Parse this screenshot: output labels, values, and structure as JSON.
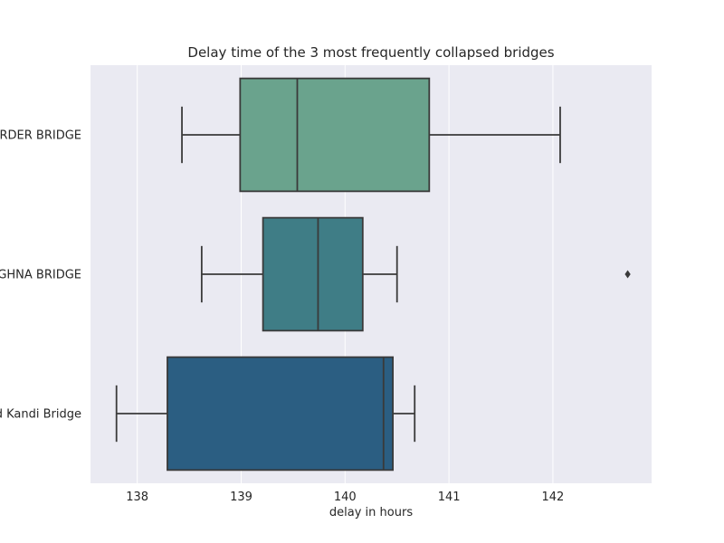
{
  "chart_data": {
    "type": "box",
    "title": "Delay time of the 3 most frequently collapsed bridges",
    "xlabel": "delay in hours",
    "ylabel": "",
    "xlim": [
      137.55,
      142.95
    ],
    "xticks": [
      138,
      139,
      140,
      141,
      142
    ],
    "grid": true,
    "orientation": "horizontal",
    "categories": [
      "RDER BRIDGE",
      "GHNA BRIDGE",
      "d Kandi Bridge"
    ],
    "boxes": [
      {
        "label": "RDER BRIDGE",
        "whisker_low": 138.43,
        "q1": 138.99,
        "median": 139.54,
        "q3": 140.81,
        "whisker_high": 142.07,
        "outliers": [],
        "color": "#6aa38d"
      },
      {
        "label": "GHNA BRIDGE",
        "whisker_low": 138.62,
        "q1": 139.21,
        "median": 139.74,
        "q3": 140.17,
        "whisker_high": 140.5,
        "outliers": [
          142.72
        ],
        "color": "#3f7d86"
      },
      {
        "label": "d Kandi Bridge",
        "whisker_low": 137.8,
        "q1": 138.29,
        "median": 140.37,
        "q3": 140.46,
        "whisker_high": 140.67,
        "outliers": [],
        "color": "#2b5e82"
      }
    ]
  }
}
